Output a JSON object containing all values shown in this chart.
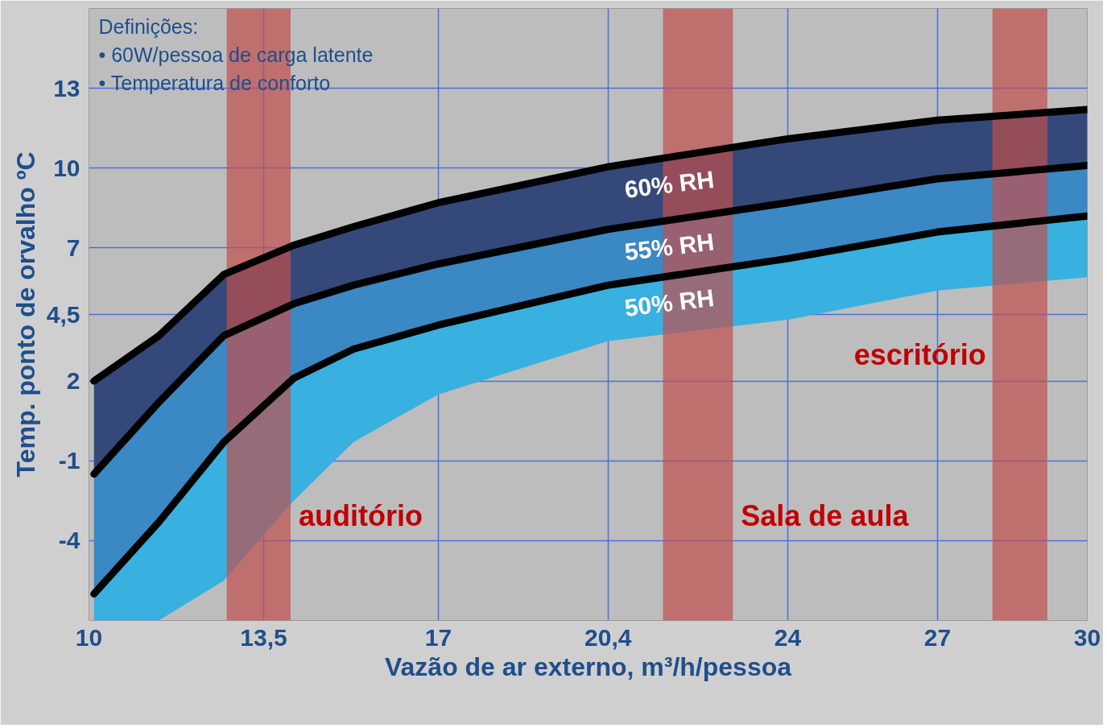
{
  "chart_data": {
    "type": "line",
    "xlabel": "Vazão de ar externo, m³/h/pessoa",
    "ylabel": "Temp. ponto de orvalho ºC",
    "x": [
      10.1,
      11.4,
      12.7,
      14.1,
      15.3,
      17,
      20.4,
      24,
      27,
      30
    ],
    "series": [
      {
        "name": "60% RH",
        "color": "#000000",
        "values": [
          2,
          3.7,
          6.0,
          7.1,
          7.8,
          8.7,
          10.05,
          11.1,
          11.8,
          12.2
        ],
        "upper": [
          2,
          3.7,
          6.0,
          7.1,
          7.8,
          8.7,
          10.05,
          11.1,
          11.8,
          12.2
        ],
        "lower": [
          -1.5,
          1.2,
          3.7,
          4.9,
          5.6,
          6.4,
          7.7,
          8.7,
          9.6,
          10.1
        ]
      },
      {
        "name": "55% RH",
        "color": "#000000",
        "values": [
          -1.5,
          1.2,
          3.7,
          4.9,
          5.6,
          6.4,
          7.7,
          8.7,
          9.6,
          10.1
        ],
        "upper": [
          -1.5,
          1.2,
          3.7,
          4.9,
          5.6,
          6.4,
          7.7,
          8.7,
          9.6,
          10.1
        ],
        "lower": [
          -6.0,
          -3.3,
          -0.3,
          2.1,
          3.2,
          4.1,
          5.6,
          6.6,
          7.6,
          8.2
        ]
      },
      {
        "name": "50% RH",
        "color": "#000000",
        "values": [
          -6.0,
          -3.3,
          -0.3,
          2.1,
          3.2,
          4.1,
          5.6,
          6.6,
          7.6,
          8.2
        ],
        "upper": [
          -6.0,
          -3.3,
          -0.3,
          2.1,
          3.2,
          4.1,
          5.6,
          6.6,
          7.6,
          8.2
        ],
        "lower": [
          -7,
          -7,
          -5.5,
          -2.5,
          -0.3,
          1.5,
          3.5,
          4.3,
          5.4,
          5.9
        ]
      }
    ],
    "bands": [
      {
        "axis": "x",
        "from": 12.76,
        "to": 14.04,
        "color": "#c0504d",
        "label": "auditório"
      },
      {
        "axis": "x",
        "from": 21.5,
        "to": 22.9,
        "color": "#c0504d",
        "label": "Sala de aula"
      },
      {
        "axis": "x",
        "from": 28.1,
        "to": 29.2,
        "color": "#c0504d",
        "label": "escritório"
      }
    ],
    "annotations": [
      "Definições:",
      "• 60W/pessoa de carga latente",
      "• Temperatura de conforto"
    ],
    "xlim": [
      10,
      30
    ],
    "ylim": [
      -7,
      16
    ],
    "xticks": [
      10,
      {
        "value": 13.5,
        "label": "13,5"
      },
      17,
      {
        "value": 20.4,
        "label": "20,4"
      },
      24,
      27,
      30
    ],
    "yticks": [
      13,
      10,
      7,
      {
        "value": 4.5,
        "label": "4,5"
      },
      2,
      -1,
      -4
    ],
    "grid": true
  }
}
